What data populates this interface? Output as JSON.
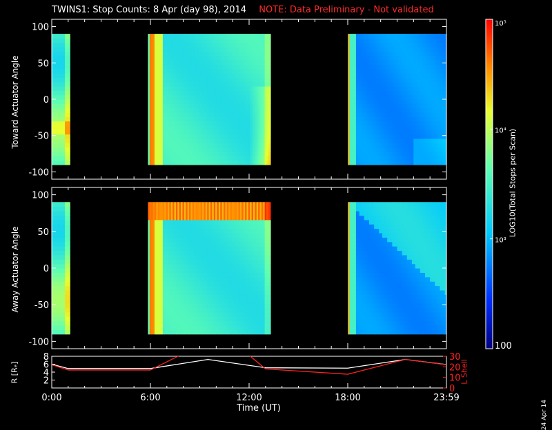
{
  "header": {
    "title": "TWINS1: Stop Counts:  8 Apr (day  98), 2014",
    "note": "NOTE: Data Preliminary - Not validated"
  },
  "colors": {
    "note": "#ff2a2a",
    "background": "#000000",
    "radius_line": "#ffffff",
    "lshell_line": "#ff2020"
  },
  "stamp": "24 Apr 14",
  "chart_data": [
    {
      "type": "heatmap",
      "ylabel": "Toward Actuator Angle",
      "ylim": [
        -110,
        110
      ],
      "yticks": [
        "100",
        "50",
        "0",
        "-50",
        "-100"
      ],
      "x_hours_range": [
        0,
        24
      ],
      "data_y_range": [
        -90,
        90
      ],
      "data_blocks_hours": [
        [
          0,
          1.1
        ],
        [
          5.85,
          13.3
        ],
        [
          18,
          24
        ]
      ],
      "colorscale": "log10 counts, 100 to 1e5"
    },
    {
      "type": "heatmap",
      "ylabel": "Away Actuator Angle",
      "ylim": [
        -110,
        110
      ],
      "yticks": [
        "100",
        "50",
        "0",
        "-50",
        "-100"
      ],
      "x_hours_range": [
        0,
        24
      ],
      "data_y_range": [
        -90,
        90
      ],
      "data_blocks_hours": [
        [
          0,
          1.1
        ],
        [
          5.85,
          13.3
        ],
        [
          18,
          24
        ]
      ],
      "colorscale": "log10 counts, 100 to 1e5"
    },
    {
      "type": "line",
      "ylabel_left": "R [Rₑ]",
      "ylabel_right": "L Shell",
      "xlabel": "Time (UT)",
      "xticks": [
        "0:00",
        "6:00",
        "12:00",
        "18:00",
        "23:59"
      ],
      "yticks_left": [
        "8",
        "6",
        "4",
        "2"
      ],
      "yticks_right": [
        "30",
        "20",
        "10",
        "0"
      ],
      "ylim_left": [
        0,
        8
      ],
      "ylim_right": [
        0,
        30
      ],
      "series": [
        {
          "name": "R [Rₑ]",
          "x": [
            0,
            1,
            6,
            9.5,
            13,
            18,
            21.5,
            24
          ],
          "values": [
            6,
            4.9,
            4.9,
            7.2,
            5.1,
            5.0,
            7.2,
            5.9
          ]
        },
        {
          "name": "L Shell",
          "x": [
            0,
            1,
            6,
            7.8,
            12,
            13,
            18,
            21.5,
            24
          ],
          "values": [
            22,
            17,
            17,
            31,
            31,
            18,
            13,
            27,
            22
          ]
        }
      ]
    },
    {
      "type": "colorbar",
      "ylabel": "LOG10(Total Stops per Scan)",
      "ticks": [
        "10⁵",
        "10⁴",
        "10³",
        "100"
      ]
    }
  ]
}
